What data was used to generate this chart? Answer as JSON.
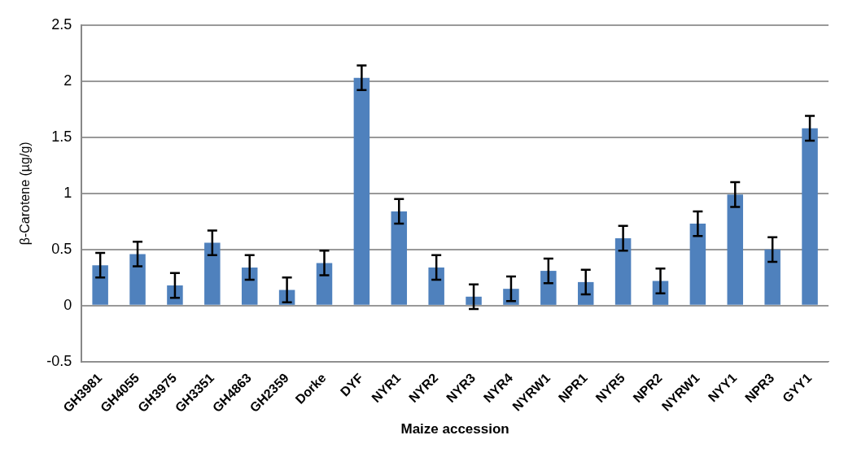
{
  "chart_data": {
    "type": "bar",
    "xlabel": "Maize accession",
    "ylabel": "β-Carotene (µg/g)",
    "categories": [
      "GH3981",
      "GH4055",
      "GH3975",
      "GH3351",
      "GH4863",
      "GH2359",
      "Dorke",
      "DYF",
      "NYR1",
      "NYR2",
      "NYR3",
      "NYR4",
      "NYRW1",
      "NPR1",
      "NYR5",
      "NPR2",
      "NYRW1",
      "NYY1",
      "NPR3",
      "GYY1"
    ],
    "values": [
      0.36,
      0.46,
      0.18,
      0.56,
      0.34,
      0.14,
      0.38,
      2.03,
      0.84,
      0.34,
      0.08,
      0.15,
      0.31,
      0.21,
      0.6,
      0.22,
      0.73,
      0.99,
      0.5,
      1.58
    ],
    "errors": [
      0.11,
      0.11,
      0.11,
      0.11,
      0.11,
      0.11,
      0.11,
      0.11,
      0.11,
      0.11,
      0.11,
      0.11,
      0.11,
      0.11,
      0.11,
      0.11,
      0.11,
      0.11,
      0.11,
      0.11
    ],
    "color": "#4f81bd",
    "ylim": [
      -0.5,
      2.5
    ],
    "yticks": [
      -0.5,
      0,
      0.5,
      1,
      1.5,
      2,
      2.5
    ],
    "grid": "y",
    "legend": false
  }
}
